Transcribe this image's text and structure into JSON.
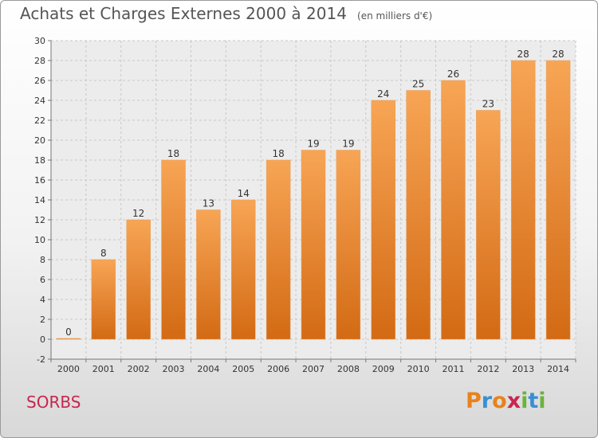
{
  "chart_data": {
    "type": "bar",
    "title": "Achats et Charges Externes 2000 à 2014",
    "subtitle": "(en milliers d'€)",
    "categories": [
      "2000",
      "2001",
      "2002",
      "2003",
      "2004",
      "2005",
      "2006",
      "2007",
      "2008",
      "2009",
      "2010",
      "2011",
      "2012",
      "2013",
      "2014"
    ],
    "values": [
      0,
      8,
      12,
      18,
      13,
      14,
      18,
      19,
      19,
      24,
      25,
      26,
      23,
      28,
      28
    ],
    "ylim": [
      -2,
      30
    ],
    "yticks": [
      "-2",
      "0",
      "2",
      "4",
      "6",
      "8",
      "10",
      "12",
      "14",
      "16",
      "18",
      "20",
      "22",
      "24",
      "26",
      "28",
      "30"
    ],
    "grid": true,
    "bar_color": "#f08c2e"
  },
  "footer": {
    "commune": "SORBS",
    "logo": "Proxiti"
  }
}
